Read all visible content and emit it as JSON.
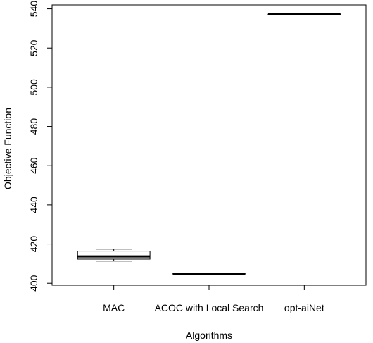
{
  "chart_data": {
    "type": "boxplot",
    "title": "",
    "xlabel": "Algorithms",
    "ylabel": "Objective Function",
    "ylim": [
      399,
      542
    ],
    "yticks": [
      400,
      420,
      440,
      460,
      480,
      500,
      520,
      540
    ],
    "grid": false,
    "categories": [
      "MAC",
      "ACOC with Local Search",
      "opt-aiNet"
    ],
    "boxes": [
      {
        "category": "MAC",
        "min": 411.3,
        "q1": 412.3,
        "median": 413.7,
        "q3": 416.4,
        "max": 417.4
      },
      {
        "category": "ACOC with Local Search",
        "min": 404.8,
        "q1": 404.8,
        "median": 404.8,
        "q3": 404.8,
        "max": 404.8
      },
      {
        "category": "opt-aiNet",
        "min": 537.2,
        "q1": 537.2,
        "median": 537.2,
        "q3": 537.2,
        "max": 537.2
      }
    ]
  }
}
